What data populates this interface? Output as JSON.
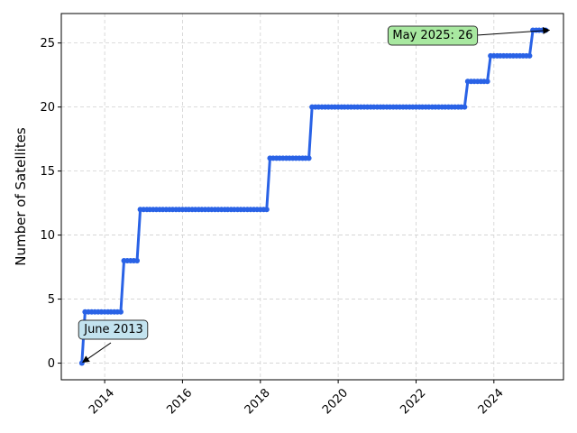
{
  "chart_data": {
    "type": "line",
    "title": "",
    "xlabel": "",
    "ylabel": "Number of Satellites",
    "xlim": [
      "2012-11-20",
      "2025-10-15"
    ],
    "ylim": [
      -1.3,
      27.3
    ],
    "grid": true,
    "x_ticks": [
      "2014",
      "2016",
      "2018",
      "2020",
      "2022",
      "2024"
    ],
    "y_ticks": [
      0,
      5,
      10,
      15,
      20,
      25
    ],
    "line_color": "#2962e6",
    "series": [
      {
        "x": [
          "2013-06-01",
          "2013-07-01",
          "2013-08-01",
          "2013-09-01",
          "2013-10-01",
          "2013-11-01",
          "2013-12-01",
          "2014-01-01",
          "2014-02-01",
          "2014-03-01",
          "2014-04-01",
          "2014-05-01",
          "2014-06-01",
          "2014-07-01",
          "2014-08-01",
          "2014-09-01",
          "2014-10-01",
          "2014-11-01",
          "2014-12-01",
          "2015-01-01",
          "2015-02-01",
          "2015-03-01",
          "2015-04-01",
          "2015-05-01",
          "2015-06-01",
          "2015-07-01",
          "2015-08-01",
          "2015-09-01",
          "2015-10-01",
          "2015-11-01",
          "2015-12-01",
          "2016-01-01",
          "2016-02-01",
          "2016-03-01",
          "2016-04-01",
          "2016-05-01",
          "2016-06-01",
          "2016-07-01",
          "2016-08-01",
          "2016-09-01",
          "2016-10-01",
          "2016-11-01",
          "2016-12-01",
          "2017-01-01",
          "2017-02-01",
          "2017-03-01",
          "2017-04-01",
          "2017-05-01",
          "2017-06-01",
          "2017-07-01",
          "2017-08-01",
          "2017-09-01",
          "2017-10-01",
          "2017-11-01",
          "2017-12-01",
          "2018-01-01",
          "2018-02-01",
          "2018-03-01",
          "2018-04-01",
          "2018-05-01",
          "2018-06-01",
          "2018-07-01",
          "2018-08-01",
          "2018-09-01",
          "2018-10-01",
          "2018-11-01",
          "2018-12-01",
          "2019-01-01",
          "2019-02-01",
          "2019-03-01",
          "2019-04-01",
          "2019-05-01",
          "2019-06-01",
          "2019-07-01",
          "2019-08-01",
          "2019-09-01",
          "2019-10-01",
          "2019-11-01",
          "2019-12-01",
          "2020-01-01",
          "2020-02-01",
          "2020-03-01",
          "2020-04-01",
          "2020-05-01",
          "2020-06-01",
          "2020-07-01",
          "2020-08-01",
          "2020-09-01",
          "2020-10-01",
          "2020-11-01",
          "2020-12-01",
          "2021-01-01",
          "2021-02-01",
          "2021-03-01",
          "2021-04-01",
          "2021-05-01",
          "2021-06-01",
          "2021-07-01",
          "2021-08-01",
          "2021-09-01",
          "2021-10-01",
          "2021-11-01",
          "2021-12-01",
          "2022-01-01",
          "2022-02-01",
          "2022-03-01",
          "2022-04-01",
          "2022-05-01",
          "2022-06-01",
          "2022-07-01",
          "2022-08-01",
          "2022-09-01",
          "2022-10-01",
          "2022-11-01",
          "2022-12-01",
          "2023-01-01",
          "2023-02-01",
          "2023-03-01",
          "2023-04-01",
          "2023-05-01",
          "2023-06-01",
          "2023-07-01",
          "2023-08-01",
          "2023-09-01",
          "2023-10-01",
          "2023-11-01",
          "2023-12-01",
          "2024-01-01",
          "2024-02-01",
          "2024-03-01",
          "2024-04-01",
          "2024-05-01",
          "2024-06-01",
          "2024-07-01",
          "2024-08-01",
          "2024-09-01",
          "2024-10-01",
          "2024-11-01",
          "2024-12-01",
          "2025-01-01",
          "2025-02-01",
          "2025-03-01",
          "2025-04-01",
          "2025-05-01"
        ],
        "y": [
          0,
          4,
          4,
          4,
          4,
          4,
          4,
          4,
          4,
          4,
          4,
          4,
          4,
          8,
          8,
          8,
          8,
          8,
          12,
          12,
          12,
          12,
          12,
          12,
          12,
          12,
          12,
          12,
          12,
          12,
          12,
          12,
          12,
          12,
          12,
          12,
          12,
          12,
          12,
          12,
          12,
          12,
          12,
          12,
          12,
          12,
          12,
          12,
          12,
          12,
          12,
          12,
          12,
          12,
          12,
          12,
          12,
          12,
          16,
          16,
          16,
          16,
          16,
          16,
          16,
          16,
          16,
          16,
          16,
          16,
          16,
          20,
          20,
          20,
          20,
          20,
          20,
          20,
          20,
          20,
          20,
          20,
          20,
          20,
          20,
          20,
          20,
          20,
          20,
          20,
          20,
          20,
          20,
          20,
          20,
          20,
          20,
          20,
          20,
          20,
          20,
          20,
          20,
          20,
          20,
          20,
          20,
          20,
          20,
          20,
          20,
          20,
          20,
          20,
          20,
          20,
          20,
          20,
          20,
          22,
          22,
          22,
          22,
          22,
          22,
          22,
          24,
          24,
          24,
          24,
          24,
          24,
          24,
          24,
          24,
          24,
          24,
          24,
          24,
          26,
          26,
          26,
          26,
          26
        ]
      }
    ],
    "annotations": [
      {
        "text": "June 2013",
        "x": "2013-06-01",
        "y": 0,
        "bg": "#c3e3ef"
      },
      {
        "text": "May 2025: 26",
        "x": "2025-05-01",
        "y": 26,
        "bg": "#a8e8a0"
      }
    ]
  }
}
